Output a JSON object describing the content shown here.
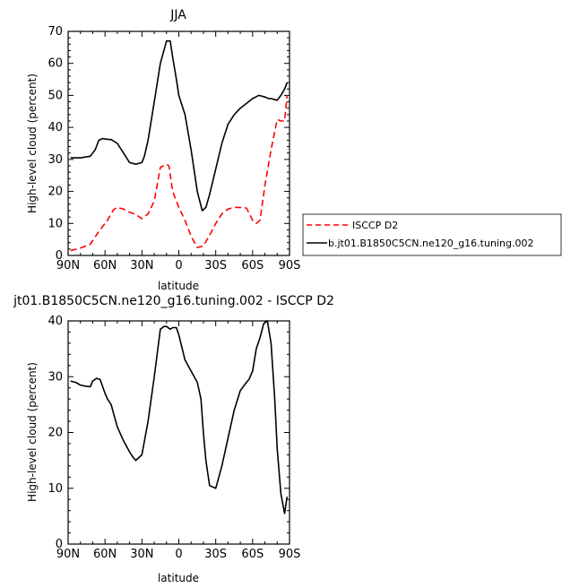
{
  "chart_data": [
    {
      "type": "line",
      "title": "JJA",
      "xlabel": "latitude",
      "ylabel": "High-level cloud (percent)",
      "xlim": [
        -90,
        90
      ],
      "ylim": [
        0,
        70
      ],
      "x_ticks": [
        -90,
        -60,
        -30,
        0,
        30,
        60,
        90
      ],
      "x_tick_labels": [
        "90N",
        "60N",
        "30N",
        "0",
        "30S",
        "60S",
        "90S"
      ],
      "y_ticks": [
        0,
        10,
        20,
        30,
        40,
        50,
        60,
        70
      ],
      "legend_position": "right",
      "series": [
        {
          "name": "ISCCP D2",
          "color": "#ff0000",
          "dash": true,
          "x": [
            -88,
            -80,
            -72,
            -65,
            -58,
            -53,
            -50,
            -45,
            -40,
            -35,
            -30,
            -25,
            -20,
            -15,
            -10,
            -8,
            -5,
            0,
            5,
            10,
            15,
            20,
            23,
            26,
            30,
            35,
            40,
            45,
            50,
            55,
            60,
            63,
            66,
            70,
            75,
            80,
            83,
            86,
            88
          ],
          "y": [
            1.5,
            2.3,
            3.5,
            7.5,
            11,
            14.3,
            15,
            14.5,
            13.5,
            12.8,
            11.5,
            13,
            17,
            27.5,
            28.5,
            28,
            20,
            15,
            11,
            6,
            2.5,
            3,
            5,
            7,
            10,
            13,
            14.5,
            15,
            15,
            14.8,
            11,
            10,
            11,
            22,
            33,
            42.5,
            42,
            42,
            50
          ]
        },
        {
          "name": "b.jt01.B1850C5CN.ne120_g16.tuning.002",
          "color": "#000000",
          "dash": false,
          "x": [
            -88,
            -80,
            -72,
            -68,
            -65,
            -62,
            -58,
            -55,
            -50,
            -45,
            -40,
            -35,
            -30,
            -28,
            -25,
            -20,
            -15,
            -10,
            -7,
            -5,
            -2,
            0,
            5,
            10,
            15,
            19,
            22,
            25,
            30,
            35,
            40,
            45,
            50,
            55,
            60,
            65,
            70,
            73,
            75,
            80,
            83,
            86,
            88
          ],
          "y": [
            30.5,
            30.5,
            31,
            33,
            36,
            36.5,
            36.3,
            36.2,
            35,
            32,
            29,
            28.5,
            29,
            31,
            36,
            48,
            60,
            67,
            67,
            62,
            55,
            50,
            44,
            33,
            20,
            14,
            15,
            19,
            27,
            35,
            41,
            44,
            46,
            47.5,
            49,
            50,
            49.5,
            49,
            49,
            48.5,
            50,
            52,
            54
          ]
        }
      ]
    },
    {
      "type": "line",
      "title": "jt01.B1850C5CN.ne120_g16.tuning.002 - ISCCP D2",
      "xlabel": "latitude",
      "ylabel": "High-level cloud (percent)",
      "xlim": [
        -90,
        90
      ],
      "ylim": [
        0,
        40
      ],
      "x_ticks": [
        -90,
        -60,
        -30,
        0,
        30,
        60,
        90
      ],
      "x_tick_labels": [
        "90N",
        "60N",
        "30N",
        "0",
        "30S",
        "60S",
        "90S"
      ],
      "y_ticks": [
        0,
        10,
        20,
        30,
        40
      ],
      "series": [
        {
          "color": "#000000",
          "dash": false,
          "x": [
            -88,
            -84,
            -80,
            -76,
            -72,
            -70,
            -67,
            -64,
            -60,
            -58,
            -55,
            -50,
            -45,
            -40,
            -37,
            -35,
            -30,
            -25,
            -20,
            -15,
            -12,
            -10,
            -7,
            -5,
            -2,
            0,
            5,
            10,
            15,
            18,
            20,
            22,
            25,
            30,
            35,
            40,
            45,
            50,
            55,
            57,
            60,
            63,
            66,
            69,
            72,
            75,
            78,
            80,
            83,
            86,
            88
          ],
          "y": [
            29.2,
            29,
            28.5,
            28.3,
            28.2,
            29.2,
            29.7,
            29.5,
            27,
            26,
            25,
            21,
            18.5,
            16.5,
            15.5,
            15,
            16,
            22,
            30,
            38.5,
            39,
            39,
            38.5,
            38.8,
            38.8,
            37.5,
            33,
            31,
            29,
            26,
            20,
            15,
            10.5,
            10,
            14,
            19,
            24,
            27.5,
            29,
            29.5,
            31,
            35,
            37,
            39.5,
            40,
            36,
            26,
            17,
            9,
            5.5,
            8.5
          ]
        }
      ]
    }
  ]
}
